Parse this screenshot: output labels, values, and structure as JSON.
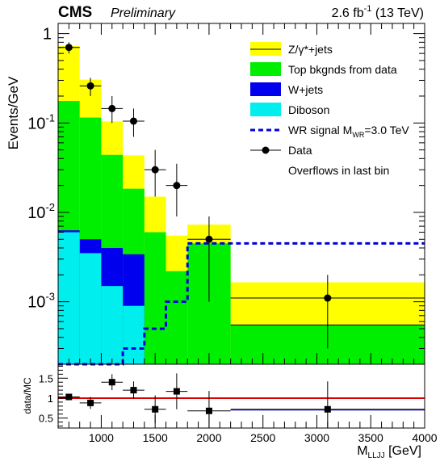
{
  "header": {
    "experiment": "CMS",
    "status": "Preliminary",
    "lumi_value": "2.6 fb",
    "lumi_exp": "-1",
    "energy": " (13 TeV)"
  },
  "chart_data": [
    {
      "type": "bar",
      "subtype": "stacked-histogram",
      "ylabel": "Events/GeV",
      "yscale": "log",
      "ylim": [
        0.0002,
        1.3
      ],
      "xlim": [
        600,
        4000
      ],
      "bin_edges": [
        600,
        800,
        1000,
        1200,
        1400,
        1600,
        1800,
        2200,
        4000
      ],
      "ytick_labels": [
        "1",
        "10",
        "10",
        "10"
      ],
      "ytick_exps": [
        "",
        "-1",
        "-2",
        "-3"
      ],
      "series": [
        {
          "name": "Z/γ*+jets",
          "color": "#ffff00",
          "values": [
            0.55,
            0.19,
            0.06,
            0.025,
            0.009,
            0.0033,
            0.0028,
            0.0011
          ]
        },
        {
          "name": "Top bkgnds from data",
          "color": "#00ee00",
          "values": [
            0.17,
            0.11,
            0.04,
            0.015,
            0.006,
            0.002,
            0.0045,
            0.00055
          ]
        },
        {
          "name": "W+jets",
          "color": "#0000ee",
          "values": [
            0.0003,
            0.0015,
            0.0025,
            0.0025,
            0.0,
            0.0002,
            0.0,
            0.0
          ]
        },
        {
          "name": "Diboson",
          "color": "#00eeee",
          "values": [
            0.006,
            0.0035,
            0.0015,
            0.0009,
            0.0,
            0.0,
            0.0,
            0.0
          ]
        }
      ],
      "signal": {
        "name": "WR signal M",
        "sub": "WR",
        "suffix": "=3.0 TeV",
        "color": "#0000dd",
        "values": [
          0.00015,
          0.00015,
          0.00015,
          0.0003,
          0.0005,
          0.001,
          0.0045,
          0.0045
        ]
      },
      "data": {
        "name": "Data",
        "x": [
          700,
          900,
          1100,
          1300,
          1500,
          1700,
          2000,
          3100
        ],
        "y": [
          0.7,
          0.26,
          0.145,
          0.105,
          0.03,
          0.02,
          0.005,
          0.0011
        ],
        "ylo": [
          0.6,
          0.2,
          0.1,
          0.07,
          0.015,
          0.009,
          0.001,
          0.0003
        ],
        "yhi": [
          0.8,
          0.32,
          0.2,
          0.145,
          0.05,
          0.035,
          0.009,
          0.002
        ],
        "xerr": [
          100,
          100,
          100,
          100,
          100,
          100,
          200,
          900
        ]
      },
      "legend_note": "Overflows in last bin",
      "legend_position": "top-right"
    },
    {
      "type": "scatter",
      "subtype": "ratio",
      "ylabel": "data/MC",
      "xlabel": "M",
      "xlabel_sub": "LLJJ",
      "xlabel_unit": " [GeV]",
      "xlim": [
        600,
        4000
      ],
      "ylim": [
        0.25,
        1.85
      ],
      "xticks": [
        1000,
        1500,
        2000,
        2500,
        3000,
        3500,
        4000
      ],
      "yticks": [
        0.5,
        1,
        1.5
      ],
      "ytick_labels": [
        "0.5",
        "1",
        "1.5"
      ],
      "reference_line": 1.0,
      "x": [
        700,
        900,
        1100,
        1300,
        1500,
        1700,
        2000,
        3100
      ],
      "y": [
        1.03,
        0.88,
        1.4,
        1.2,
        0.72,
        1.17,
        0.68,
        0.72
      ],
      "yerr": [
        0.08,
        0.15,
        0.2,
        0.22,
        0.35,
        0.45,
        0.5,
        0.7
      ],
      "xerr": [
        100,
        100,
        100,
        100,
        100,
        100,
        200,
        900
      ]
    }
  ]
}
